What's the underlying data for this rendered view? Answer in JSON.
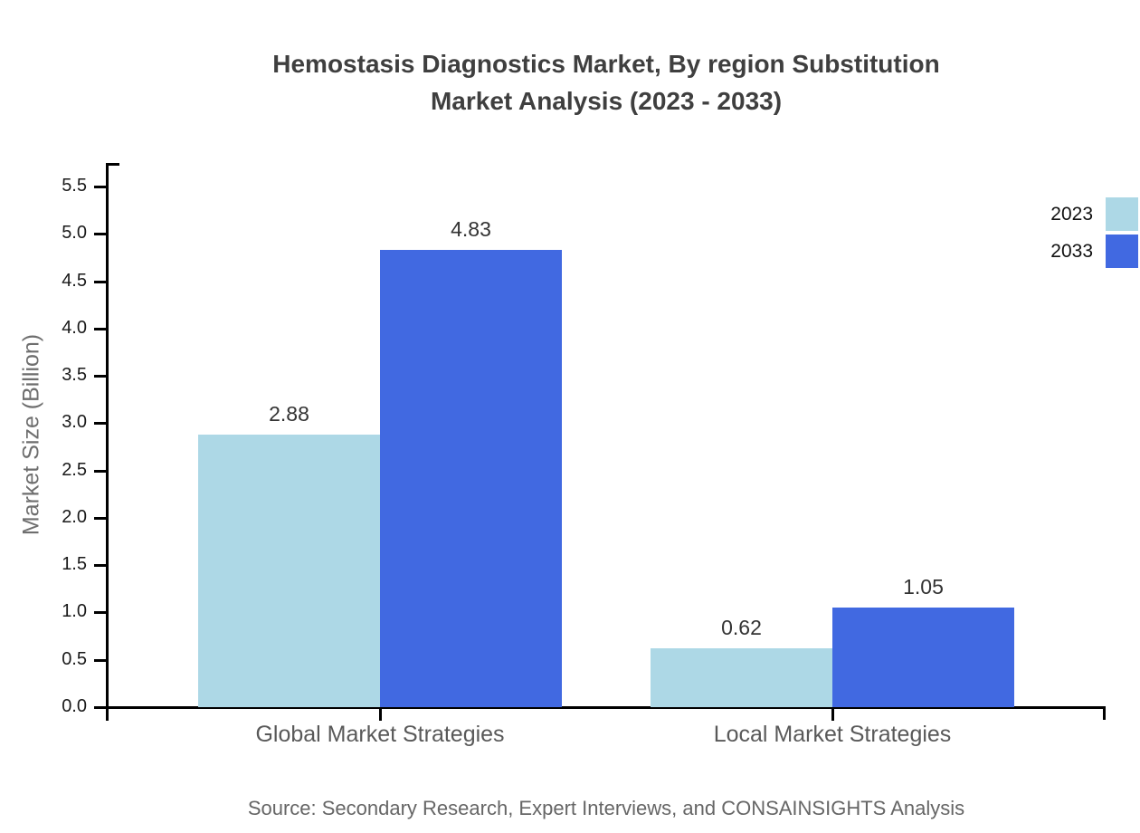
{
  "chart_data": {
    "type": "bar",
    "title": "Hemostasis Diagnostics Market, By region Substitution Market Analysis (2023 - 2033)",
    "title_lines": [
      "Hemostasis Diagnostics Market, By region Substitution",
      "Market Analysis (2023 - 2033)"
    ],
    "categories": [
      "Global Market Strategies",
      "Local Market Strategies"
    ],
    "series": [
      {
        "name": "2023",
        "color": "#ADD8E6",
        "values": [
          2.88,
          0.62
        ]
      },
      {
        "name": "2033",
        "color": "#4169E1",
        "values": [
          4.83,
          1.05
        ]
      }
    ],
    "xlabel": "",
    "ylabel": "Market Size (Billion)",
    "ylim": [
      0,
      5.75
    ],
    "yticks": [
      0.0,
      0.5,
      1.0,
      1.5,
      2.0,
      2.5,
      3.0,
      3.5,
      4.0,
      4.5,
      5.0,
      5.5
    ],
    "grid": false,
    "legend_position": "top-right",
    "value_label_decimals": 2,
    "source": "Source: Secondary Research, Expert Interviews, and CONSAINSIGHTS Analysis"
  },
  "colors": {
    "axis": "#000000",
    "title": "#3f3f3f",
    "tick_label": "#1a1a1a",
    "category_label": "#595959",
    "y_axis_title": "#6e6e6e",
    "value_label": "#333333",
    "source": "#666666",
    "legend_label": "#111111",
    "background": "#ffffff"
  }
}
